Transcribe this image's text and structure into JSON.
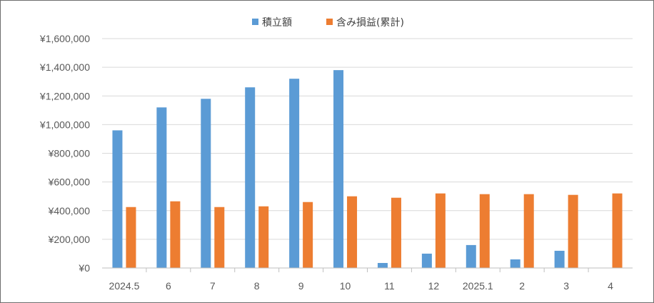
{
  "chart_data": {
    "type": "bar",
    "categories": [
      "2024.5",
      "6",
      "7",
      "8",
      "9",
      "10",
      "11",
      "12",
      "2025.1",
      "2",
      "3",
      "4"
    ],
    "series": [
      {
        "name": "積立額",
        "color": "#5b9bd5",
        "values": [
          960000,
          1120000,
          1180000,
          1260000,
          1320000,
          1380000,
          35000,
          100000,
          160000,
          60000,
          120000,
          0
        ]
      },
      {
        "name": "含み損益(累計)",
        "color": "#ed7d31",
        "values": [
          425000,
          465000,
          425000,
          430000,
          460000,
          500000,
          490000,
          520000,
          515000,
          515000,
          510000,
          520000
        ]
      }
    ],
    "ylim": [
      0,
      1600000
    ],
    "yticks": [
      "¥0",
      "¥200,000",
      "¥400,000",
      "¥600,000",
      "¥800,000",
      "¥1,000,000",
      "¥1,200,000",
      "¥1,400,000",
      "¥1,600,000"
    ],
    "grid": true,
    "legend_position": "top-center"
  }
}
